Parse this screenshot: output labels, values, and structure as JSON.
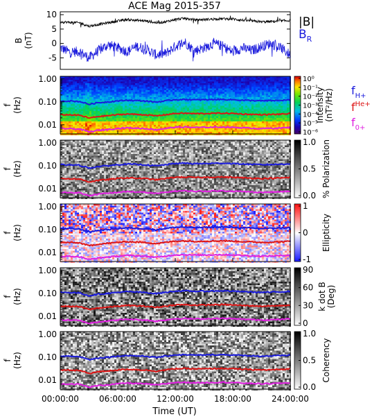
{
  "title": "ACE Mag 2015-357",
  "colors": {
    "b_total": "#000000",
    "b_r": "#1a1adc",
    "f_h": "#1a1adc",
    "f_he": "#dd1515",
    "f_o": "#e020e0"
  },
  "x_axis": {
    "label": "Time (UT)",
    "ticks": [
      "00:00:00",
      "06:00:00",
      "12:00:00",
      "18:00:00",
      "24:00:00"
    ],
    "range_hours": [
      0,
      24
    ]
  },
  "legend": {
    "b_total": "|B|",
    "b_r_base": "B",
    "b_r_sub": "R",
    "f_base": "f",
    "f_h_sub": "H+",
    "f_he_sup": "He+",
    "f_o_sub": "0+"
  },
  "freq_axis": {
    "label_top": "f",
    "label_bottom": "(Hz)",
    "ticks": [
      "1.00",
      "0.10",
      "0.01"
    ]
  },
  "chart_data": [
    {
      "type": "line",
      "ylabel_top": "B",
      "ylabel_bottom": "(nT)",
      "ylim": [
        -9,
        11
      ],
      "yticks": [
        "10",
        "5",
        "0",
        "-5"
      ],
      "x_hours": [
        0,
        1,
        2,
        3,
        4,
        5,
        6,
        7,
        8,
        9,
        10,
        11,
        12,
        13,
        14,
        15,
        16,
        17,
        18,
        19,
        20,
        21,
        22,
        23,
        24
      ],
      "series": [
        {
          "name": "|B|",
          "values": [
            7.5,
            7.3,
            7.2,
            6.0,
            6.6,
            7.2,
            7.8,
            8.3,
            8.0,
            7.8,
            7.2,
            7.5,
            8.4,
            8.7,
            8.2,
            8.3,
            8.5,
            8.6,
            8.5,
            8.1,
            7.8,
            7.5,
            7.6,
            7.8,
            8.0
          ]
        },
        {
          "name": "B_R",
          "values": [
            -1.5,
            -3.0,
            -2.8,
            -5.0,
            -2.5,
            -0.5,
            -1.5,
            -2.8,
            -1.0,
            -2.0,
            -4.0,
            -3.5,
            -1.0,
            0.5,
            -2.5,
            -1.5,
            0.0,
            -1.0,
            -3.0,
            -1.5,
            -2.5,
            -1.0,
            0.0,
            -1.5,
            -4.0
          ]
        }
      ]
    },
    {
      "type": "heatmap",
      "colormap": "rainbow",
      "zlabel_a": "Intensity",
      "zlabel_b": "(nT²/Hz)",
      "zticks": [
        "10⁰",
        "10⁻¹",
        "10⁻²",
        "10⁻³",
        "10⁻⁴",
        "10⁻⁵",
        "10⁻⁶"
      ]
    },
    {
      "type": "heatmap",
      "colormap": "gray",
      "zlabel_a": "% Polarization",
      "zlabel_b": "",
      "zticks": [
        "1.0",
        "0.5",
        "0.0"
      ]
    },
    {
      "type": "heatmap",
      "colormap": "bwr",
      "zlabel_a": "Ellipticity",
      "zlabel_b": "",
      "zticks": [
        "1",
        "0",
        "-1"
      ]
    },
    {
      "type": "heatmap",
      "colormap": "gray",
      "zlabel_a": "k dot B",
      "zlabel_b": "(Deg)",
      "zticks": [
        "90",
        "60",
        "30",
        "0"
      ]
    },
    {
      "type": "heatmap",
      "colormap": "gray",
      "zlabel_a": "Coherency",
      "zlabel_b": "",
      "zticks": [
        "1.0",
        "0.5",
        "0.0"
      ]
    }
  ],
  "gyrofrequencies": {
    "x_hours": [
      0,
      1,
      2,
      3,
      4,
      5,
      6,
      7,
      8,
      9,
      10,
      11,
      12,
      13,
      14,
      15,
      16,
      17,
      18,
      19,
      20,
      21,
      22,
      23,
      24
    ],
    "f_H_hz": [
      0.11,
      0.108,
      0.104,
      0.078,
      0.092,
      0.1,
      0.11,
      0.118,
      0.113,
      0.108,
      0.097,
      0.11,
      0.125,
      0.127,
      0.122,
      0.123,
      0.126,
      0.128,
      0.124,
      0.118,
      0.114,
      0.11,
      0.112,
      0.116,
      0.122
    ]
  }
}
